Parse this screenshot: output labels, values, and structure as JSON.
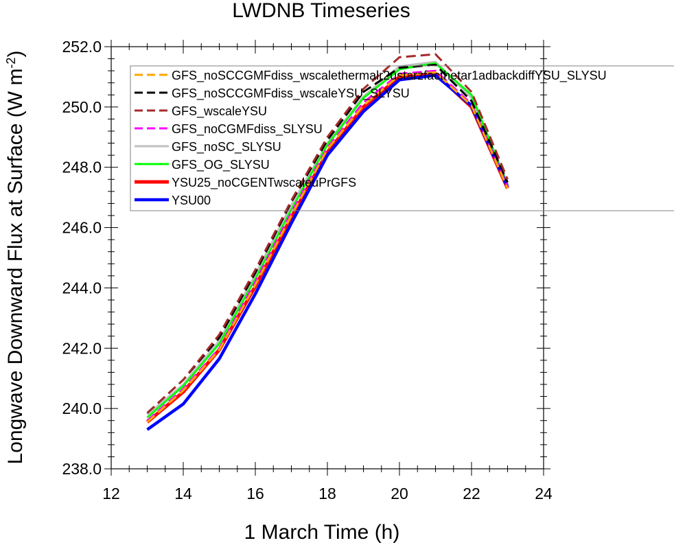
{
  "chart_data": {
    "type": "line",
    "title": "LWDNB Timeseries",
    "xlabel": "1 March Time (h)",
    "ylabel": "Longwave Downward Flux at Surface (W m",
    "ylabel_superscript": "-2",
    "ylabel_suffix": ")",
    "xlim": [
      12,
      24
    ],
    "ylim": [
      238.0,
      252.0
    ],
    "x_ticks": [
      12,
      14,
      16,
      18,
      20,
      22,
      24
    ],
    "x_tick_labels": [
      "12",
      "14",
      "16",
      "18",
      "20",
      "22",
      "24"
    ],
    "y_ticks": [
      238.0,
      240.0,
      242.0,
      244.0,
      246.0,
      248.0,
      250.0,
      252.0
    ],
    "y_tick_labels": [
      "238.0",
      "240.0",
      "242.0",
      "244.0",
      "246.0",
      "248.0",
      "250.0",
      "252.0"
    ],
    "grid": false,
    "legend_position": "top-right",
    "x": [
      13,
      14,
      15,
      16,
      17,
      18,
      19,
      20,
      21,
      22,
      23
    ],
    "series": [
      {
        "name": "GFS_noSCCGMFdiss_wscalethermalr2ustarzfacthetar1adbackdiffYSU_SLYSU",
        "color": "#ffa500",
        "dash": true,
        "values": [
          239.55,
          240.6,
          241.95,
          244.1,
          246.4,
          248.6,
          250.05,
          251.05,
          251.15,
          250.05,
          247.3
        ]
      },
      {
        "name": "GFS_noSCCGMFdiss_wscaleYSU_SLYSU",
        "color": "#000000",
        "dash": true,
        "values": [
          239.85,
          240.95,
          242.35,
          244.5,
          246.85,
          248.9,
          250.5,
          251.3,
          251.4,
          250.2,
          247.5
        ]
      },
      {
        "name": "GFS_wscaleYSU",
        "color": "#a52a2a",
        "dash": true,
        "values": [
          239.85,
          240.95,
          242.45,
          244.6,
          246.9,
          249.0,
          250.6,
          251.65,
          251.75,
          250.5,
          247.6
        ]
      },
      {
        "name": "GFS_noCGMFdiss_SLYSU",
        "color": "#ff00ff",
        "dash": true,
        "values": [
          239.6,
          240.65,
          242.0,
          244.2,
          246.5,
          248.65,
          250.15,
          251.1,
          251.2,
          250.1,
          247.35
        ]
      },
      {
        "name": "GFS_noSC_SLYSU",
        "color": "#c0c0c0",
        "dash": false,
        "values": [
          239.8,
          240.8,
          242.25,
          244.45,
          246.75,
          248.8,
          250.35,
          251.35,
          251.5,
          250.3,
          247.45
        ]
      },
      {
        "name": "GFS_OG_SLYSU",
        "color": "#00ff00",
        "dash": false,
        "values": [
          239.7,
          240.75,
          242.15,
          244.3,
          246.6,
          248.75,
          250.3,
          251.25,
          251.45,
          250.4,
          247.4
        ]
      },
      {
        "name": "YSU25_noCGENTwscaleuPrGFS",
        "color": "#ff0000",
        "dash": false,
        "values": [
          239.55,
          240.55,
          241.95,
          244.05,
          246.35,
          248.5,
          250.0,
          251.0,
          251.1,
          250.0,
          247.3
        ]
      },
      {
        "name": "YSU00",
        "color": "#0000ff",
        "dash": false,
        "values": [
          239.3,
          240.15,
          241.65,
          243.8,
          246.15,
          248.4,
          249.85,
          250.9,
          251.05,
          250.05,
          247.35
        ]
      }
    ]
  }
}
